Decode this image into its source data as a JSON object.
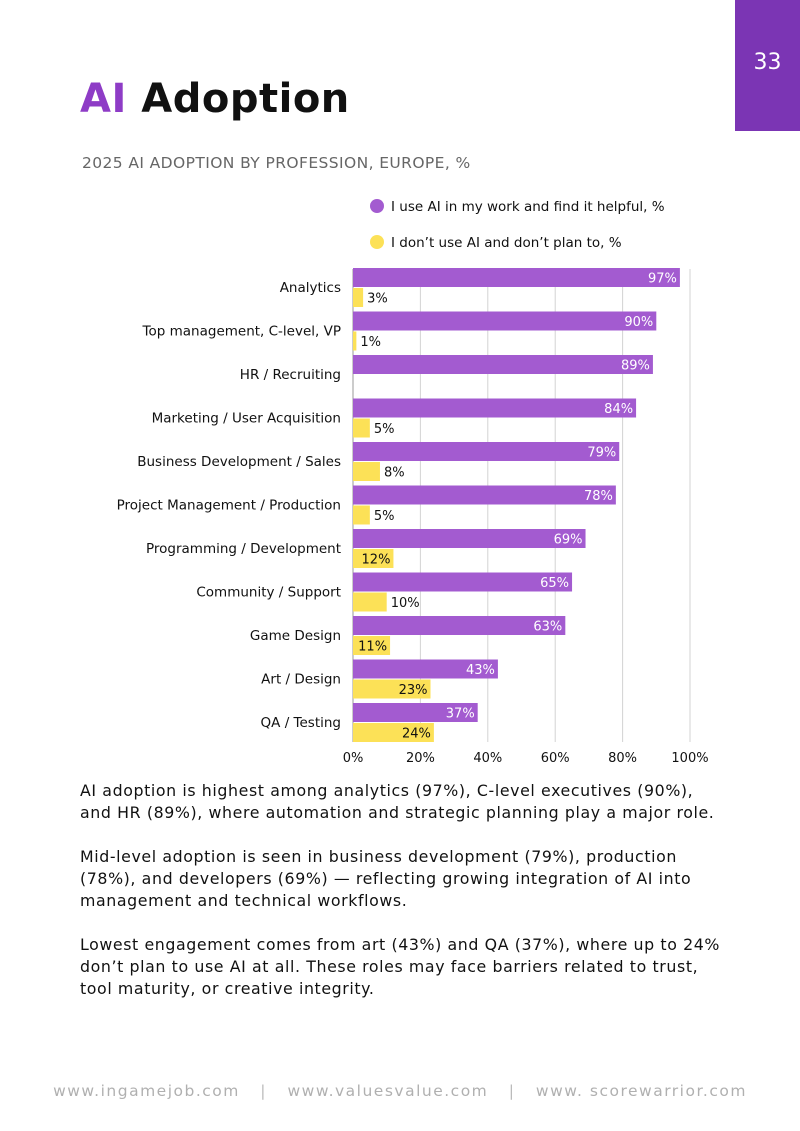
{
  "page_number": "33",
  "title": {
    "accent": "AI",
    "rest": "Adoption"
  },
  "subtitle": "2025 AI ADOPTION BY PROFESSION, EUROPE, %",
  "colors": {
    "purple": "#a35bd0",
    "yellow": "#fce157",
    "badge": "#7b35b4",
    "accent": "#8e3cc6",
    "grid": "#d3d3d3"
  },
  "chart_data": {
    "type": "bar",
    "orientation": "horizontal",
    "title": "2025 AI ADOPTION BY PROFESSION, EUROPE, %",
    "categories": [
      "Analytics",
      "Top management, C-level, VP",
      "HR / Recruiting",
      "Marketing / User Acquisition",
      "Business Development / Sales",
      "Project Management / Production",
      "Programming / Development",
      "Community / Support",
      "Game Design",
      "Art / Design",
      "QA / Testing"
    ],
    "series": [
      {
        "name": "I use AI in my work and find it helpful, %",
        "color": "#a35bd0",
        "values": [
          97,
          90,
          89,
          84,
          79,
          78,
          69,
          65,
          63,
          43,
          37
        ]
      },
      {
        "name": "I don’t use AI and don’t plan to, %",
        "color": "#fce157",
        "values": [
          3,
          1,
          null,
          5,
          8,
          5,
          12,
          10,
          11,
          23,
          24
        ]
      }
    ],
    "xlim": [
      0,
      100
    ],
    "xticks": [
      "0%",
      "20%",
      "40%",
      "60%",
      "80%",
      "100%"
    ],
    "grid": true,
    "legend_position": "top"
  },
  "paragraphs": [
    "AI adoption is highest among analytics (97%), C-level executives (90%), and HR (89%), where automation and strategic planning play a major role.",
    "Mid-level adoption is seen in business development (79%), production (78%), and developers (69%) — reflecting growing integration of AI into management and technical workflows.",
    "Lowest engagement comes from art (43%) and QA (37%), where up to 24% don’t plan to use AI at all. These roles may face barriers related to trust, tool maturity, or creative integrity."
  ],
  "footer": {
    "links": [
      "www.ingamejob.com",
      "www.valuesvalue.com",
      "www. scorewarrior.com"
    ],
    "separator": "|"
  }
}
